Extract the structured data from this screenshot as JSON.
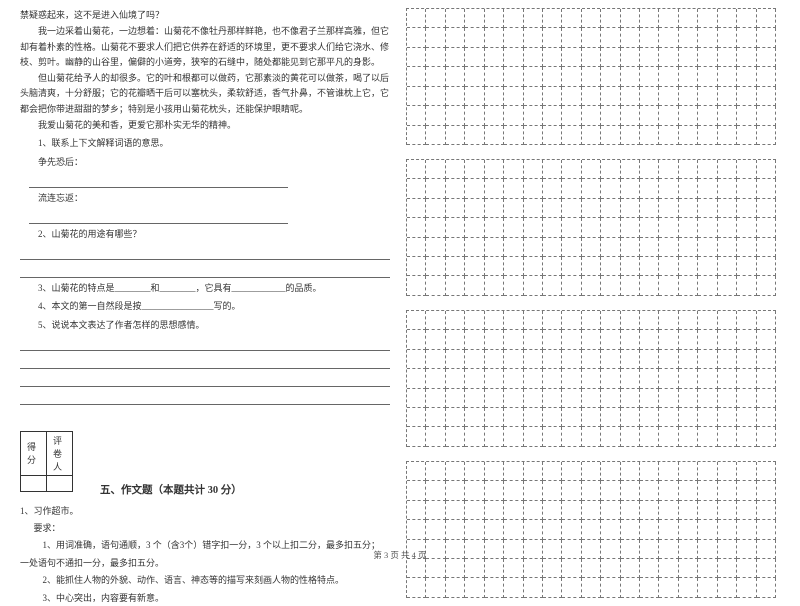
{
  "left": {
    "para1": "禁疑惑起来，这不是进入仙境了吗？",
    "para2": "我一边采着山菊花，一边想着：山菊花不像牡丹那样鲜艳，也不像君子兰那样高雅，但它却有着朴素的性格。山菊花不要求人们把它供养在舒适的环境里，更不要求人们给它浇水、修枝、剪叶。幽静的山谷里，偏僻的小道旁，狭窄的石缝中，随处都能见到它那平凡的身影。",
    "para3": "但山菊花给予人的却很多。它的叶和根都可以做药，它那素淡的黄花可以做茶，喝了以后头脑清爽，十分舒服；它的花瓣晒干后可以塞枕头，柔软舒适，香气扑鼻，不管谁枕上它，它都会把你带进甜甜的梦乡；特别是小孩用山菊花枕头，还能保护眼睛呢。",
    "para4": "我爱山菊花的美和香，更爱它那朴实无华的精神。",
    "q1": "1、联系上下文解释词语的意思。",
    "q1a": "争先恐后：",
    "q1b": "流连忘返：",
    "q2": "2、山菊花的用途有哪些？",
    "q3a": "3、山菊花的特点是________和________，它具有____________的品质。",
    "q4": "4、本文的第一自然段是按________________写的。",
    "q5": "5、说说本文表达了作者怎样的思想感情。",
    "score_a": "得分",
    "score_b": "评卷人",
    "section": "五、作文题（本题共计 30 分）",
    "comp1": "1、习作超市。",
    "comp_req": "要求：",
    "comp_r1": "1、用词准确，语句通顺，3 个（含3个）错字扣一分，3 个以上扣二分，最多扣五分；",
    "comp_r1b": "一处语句不通扣一分，最多扣五分。",
    "comp_r2": "2、能抓住人物的外貌、动作、语言、神态等的描写来刻画人物的性格特点。",
    "comp_r3": "3、中心突出，内容要有新意。"
  },
  "grids": {
    "blocks": 4,
    "rows": 7,
    "cols": 19,
    "border_color": "#777777"
  },
  "footer": "第 3 页  共 4 页",
  "style": {
    "bg": "#ffffff",
    "text": "#333333",
    "font_body": 9,
    "font_section": 10.5
  }
}
